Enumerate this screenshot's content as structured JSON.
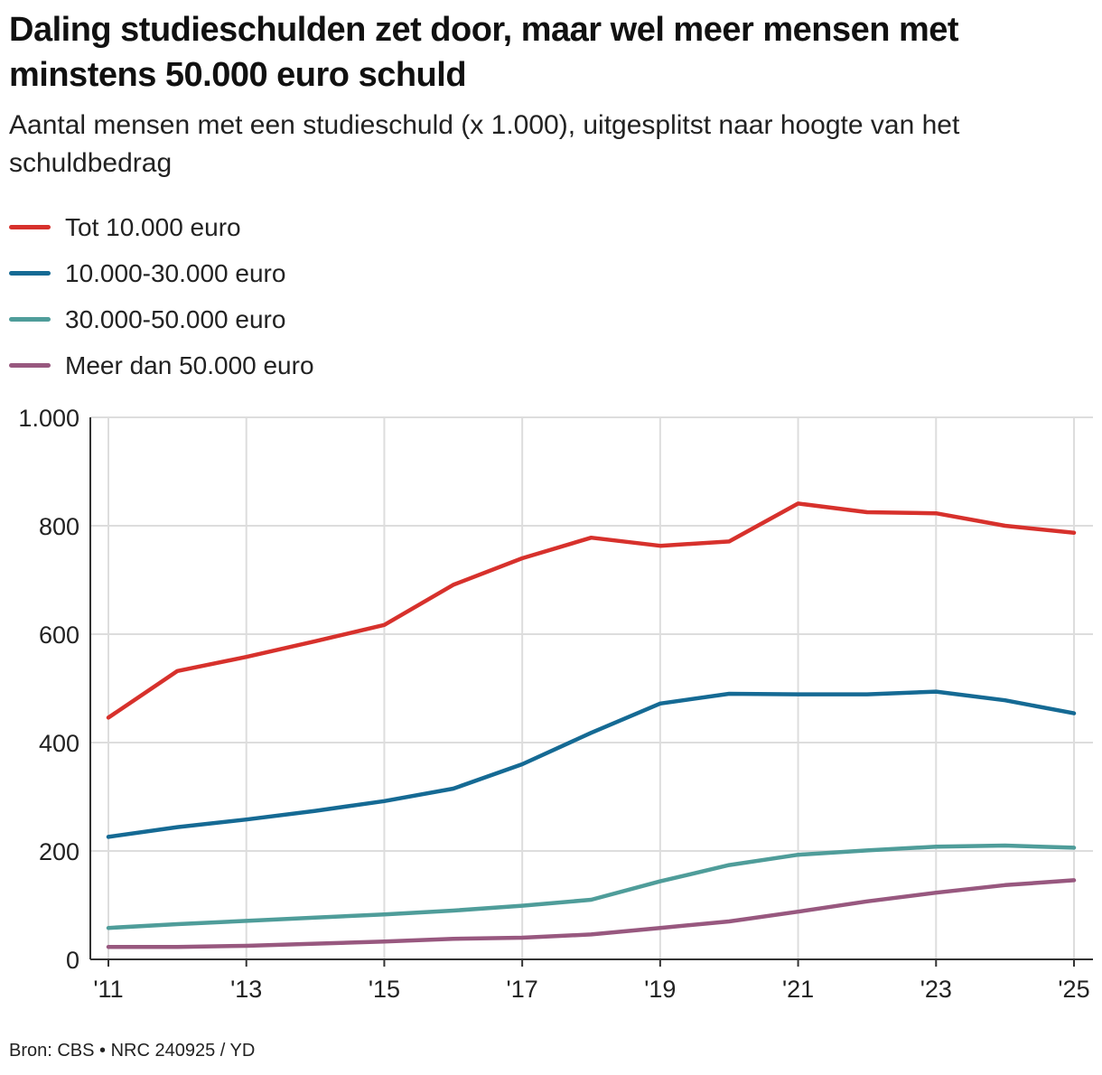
{
  "title": "Daling studieschulden zet door, maar wel meer mensen met minstens 50.000 euro schuld",
  "subtitle": "Aantal mensen met een studieschuld (x 1.000), uitgesplitst naar hoogte van het schuldbedrag",
  "footer": "Bron: CBS • NRC 240925 / YD",
  "chart_data": {
    "type": "line",
    "x": [
      2011,
      2012,
      2013,
      2014,
      2015,
      2016,
      2017,
      2018,
      2019,
      2020,
      2021,
      2022,
      2023,
      2024,
      2025
    ],
    "xticks": [
      {
        "value": 2011,
        "label": "'11"
      },
      {
        "value": 2013,
        "label": "'13"
      },
      {
        "value": 2015,
        "label": "'15"
      },
      {
        "value": 2017,
        "label": "'17"
      },
      {
        "value": 2019,
        "label": "'19"
      },
      {
        "value": 2021,
        "label": "'21"
      },
      {
        "value": 2023,
        "label": "'23"
      },
      {
        "value": 2025,
        "label": "'25"
      }
    ],
    "yticks": [
      {
        "value": 0,
        "label": "0"
      },
      {
        "value": 200,
        "label": "200"
      },
      {
        "value": 400,
        "label": "400"
      },
      {
        "value": 600,
        "label": "600"
      },
      {
        "value": 800,
        "label": "800"
      },
      {
        "value": 1000,
        "label": "1.000"
      }
    ],
    "xlim": [
      2011,
      2025
    ],
    "ylim": [
      0,
      1000
    ],
    "grid": true,
    "legend_position": "top-left",
    "series": [
      {
        "name": "Tot 10.000 euro",
        "color": "#d7312c",
        "values": [
          446,
          532,
          558,
          587,
          617,
          691,
          740,
          778,
          763,
          771,
          841,
          825,
          823,
          800,
          787
        ]
      },
      {
        "name": "10.000-30.000 euro",
        "color": "#156a94",
        "values": [
          226,
          244,
          258,
          274,
          292,
          315,
          360,
          418,
          472,
          490,
          489,
          489,
          494,
          478,
          454
        ]
      },
      {
        "name": "30.000-50.000 euro",
        "color": "#4f9d9a",
        "values": [
          58,
          65,
          71,
          77,
          83,
          90,
          99,
          110,
          144,
          174,
          193,
          201,
          208,
          210,
          206
        ]
      },
      {
        "name": "Meer dan 50.000 euro",
        "color": "#98587f",
        "values": [
          23,
          23,
          25,
          29,
          33,
          38,
          40,
          46,
          58,
          70,
          88,
          107,
          123,
          137,
          146
        ]
      }
    ]
  }
}
